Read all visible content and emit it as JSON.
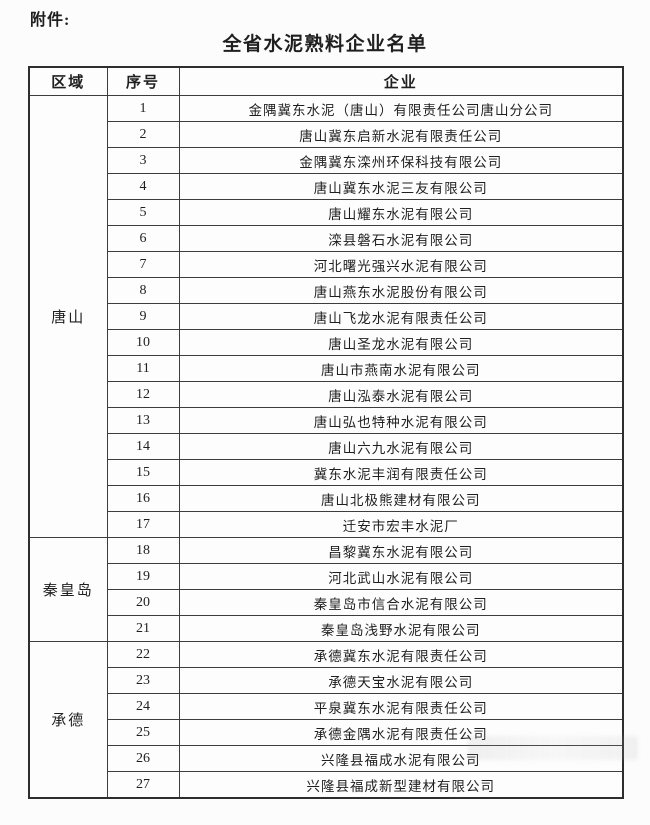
{
  "page": {
    "attachment_label": "附件:",
    "title": "全省水泥熟料企业名单"
  },
  "table": {
    "headers": [
      "区域",
      "序号",
      "企业"
    ],
    "groups": [
      {
        "region": "唐山",
        "rows": [
          {
            "no": "1",
            "company": "金隅冀东水泥（唐山）有限责任公司唐山分公司"
          },
          {
            "no": "2",
            "company": "唐山冀东启新水泥有限责任公司"
          },
          {
            "no": "3",
            "company": "金隅冀东滦州环保科技有限公司"
          },
          {
            "no": "4",
            "company": "唐山冀东水泥三友有限公司"
          },
          {
            "no": "5",
            "company": "唐山耀东水泥有限公司"
          },
          {
            "no": "6",
            "company": "滦县磐石水泥有限公司"
          },
          {
            "no": "7",
            "company": "河北曙光强兴水泥有限公司"
          },
          {
            "no": "8",
            "company": "唐山燕东水泥股份有限公司"
          },
          {
            "no": "9",
            "company": "唐山飞龙水泥有限责任公司"
          },
          {
            "no": "10",
            "company": "唐山圣龙水泥有限公司"
          },
          {
            "no": "11",
            "company": "唐山市燕南水泥有限公司"
          },
          {
            "no": "12",
            "company": "唐山泓泰水泥有限公司"
          },
          {
            "no": "13",
            "company": "唐山弘也特种水泥有限公司"
          },
          {
            "no": "14",
            "company": "唐山六九水泥有限公司"
          },
          {
            "no": "15",
            "company": "冀东水泥丰润有限责任公司"
          },
          {
            "no": "16",
            "company": "唐山北极熊建材有限公司"
          },
          {
            "no": "17",
            "company": "迁安市宏丰水泥厂"
          }
        ]
      },
      {
        "region": "秦皇岛",
        "rows": [
          {
            "no": "18",
            "company": "昌黎冀东水泥有限公司"
          },
          {
            "no": "19",
            "company": "河北武山水泥有限公司"
          },
          {
            "no": "20",
            "company": "秦皇岛市信合水泥有限公司"
          },
          {
            "no": "21",
            "company": "秦皇岛浅野水泥有限公司"
          }
        ]
      },
      {
        "region": "承德",
        "rows": [
          {
            "no": "22",
            "company": "承德冀东水泥有限责任公司"
          },
          {
            "no": "23",
            "company": "承德天宝水泥有限公司"
          },
          {
            "no": "24",
            "company": "平泉冀东水泥有限责任公司"
          },
          {
            "no": "25",
            "company": "承德金隅水泥有限责任公司"
          },
          {
            "no": "26",
            "company": "兴隆县福成水泥有限公司"
          },
          {
            "no": "27",
            "company": "兴隆县福成新型建材有限公司"
          }
        ]
      }
    ]
  },
  "colors": {
    "text": "#1f1f1f",
    "border": "#3d3d3d",
    "outer_border": "#2e2e2e",
    "background": "#fcfcfc"
  }
}
